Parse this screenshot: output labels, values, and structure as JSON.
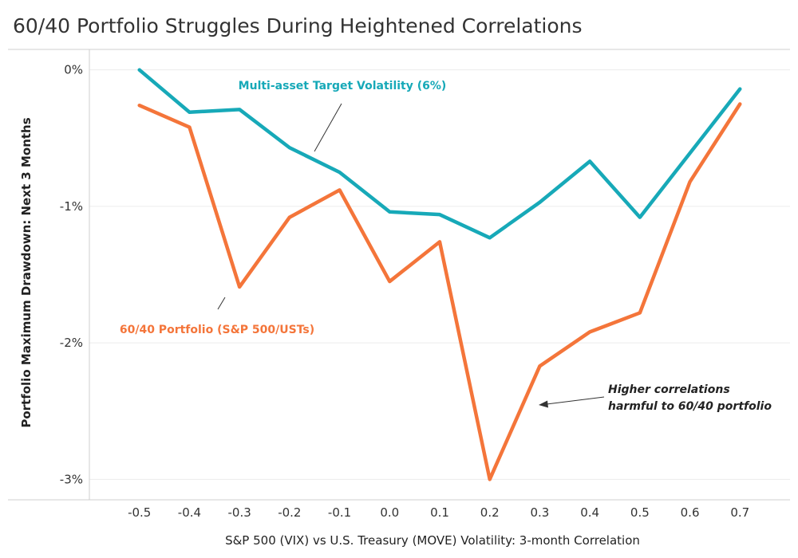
{
  "chart_data": {
    "type": "line",
    "title": "60/40 Portfolio Struggles During Heightened Correlations",
    "xlabel": "S&P 500 (VIX) vs U.S. Treasury (MOVE) Volatility: 3-month Correlation",
    "ylabel": "Portfolio Maximum Drawdown: Next 3 Months",
    "x": [
      -0.5,
      -0.4,
      -0.3,
      -0.2,
      -0.1,
      0.0,
      0.1,
      0.2,
      0.3,
      0.4,
      0.5,
      0.6,
      0.7
    ],
    "x_tick_labels": [
      "-0.5",
      "-0.4",
      "-0.3",
      "-0.2",
      "-0.1",
      "0.0",
      "0.1",
      "0.2",
      "0.3",
      "0.4",
      "0.5",
      "0.6",
      "0.7"
    ],
    "y_ticks": [
      0,
      -1,
      -2,
      -3
    ],
    "y_tick_labels": [
      "0%",
      "-1%",
      "-2%",
      "-3%"
    ],
    "ylim": [
      -3.15,
      0.15
    ],
    "xlim": [
      -0.6,
      0.8
    ],
    "grid": "horizontal",
    "series": [
      {
        "name": "Multi-asset Target Volatility (6%)",
        "color": "#17A9B8",
        "values": [
          0.0,
          -0.31,
          -0.29,
          -0.57,
          -0.75,
          -1.04,
          -1.06,
          -1.23,
          -0.97,
          -0.67,
          -1.08,
          -0.61,
          -0.14
        ]
      },
      {
        "name": "60/40 Portfolio (S&P 500/USTs)",
        "color": "#F4753A",
        "values": [
          -0.26,
          -0.42,
          -1.59,
          -1.08,
          -0.88,
          -1.55,
          -1.26,
          -3.0,
          -2.17,
          -1.92,
          -1.78,
          -0.82,
          -0.25
        ]
      }
    ],
    "annotation": {
      "lines": [
        "Higher correlations",
        "harmful to 60/40 portfolio"
      ]
    }
  }
}
